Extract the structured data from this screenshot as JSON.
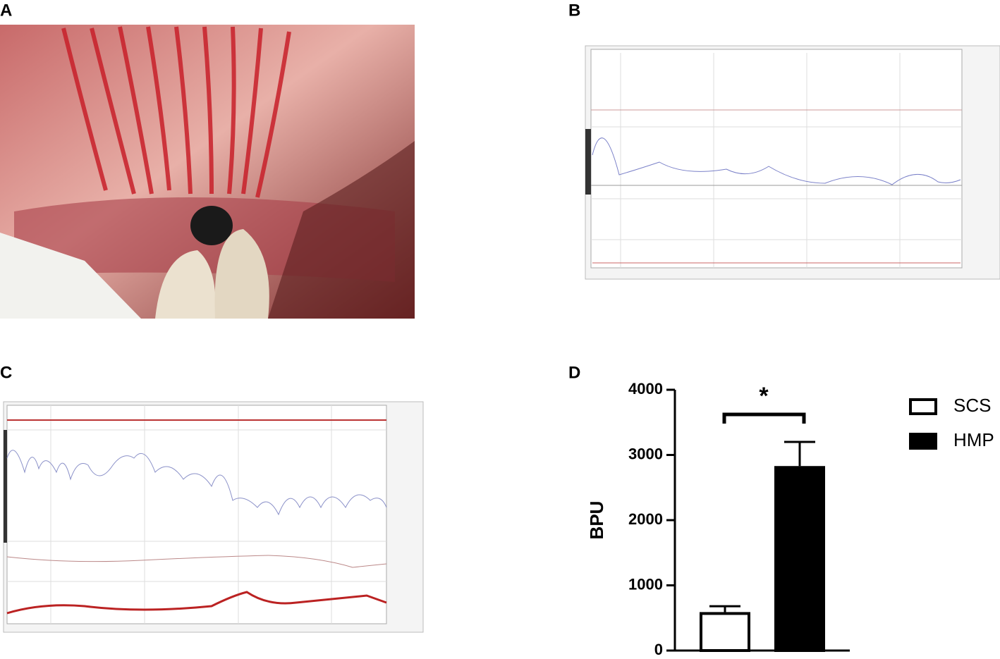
{
  "panels": [
    "A",
    "B",
    "C",
    "D"
  ],
  "chart_data": {
    "type": "bar",
    "ylabel": "BPU",
    "annotation": "*",
    "series": [
      {
        "name": "SCS",
        "color": "#ffffff",
        "values": [
          590
        ],
        "errors": [
          90
        ]
      },
      {
        "name": "HMP",
        "color": "#000000",
        "values": [
          2830
        ],
        "errors": [
          370
        ]
      }
    ],
    "ylim": [
      0,
      4000
    ],
    "yticks": [
      0,
      1000,
      2000,
      3000,
      4000
    ],
    "legend": "right"
  }
}
